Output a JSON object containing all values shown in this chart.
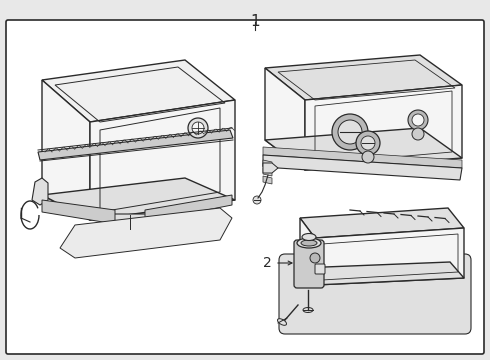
{
  "bg_color": "#e8e8e8",
  "border_fill": "#ffffff",
  "line_color": "#2a2a2a",
  "face_light": "#f5f5f5",
  "face_mid": "#e0e0e0",
  "face_dark": "#cccccc",
  "face_darker": "#b8b8b8",
  "label_1": "1",
  "label_2": "2",
  "fig_width": 4.9,
  "fig_height": 3.6,
  "dpi": 100
}
